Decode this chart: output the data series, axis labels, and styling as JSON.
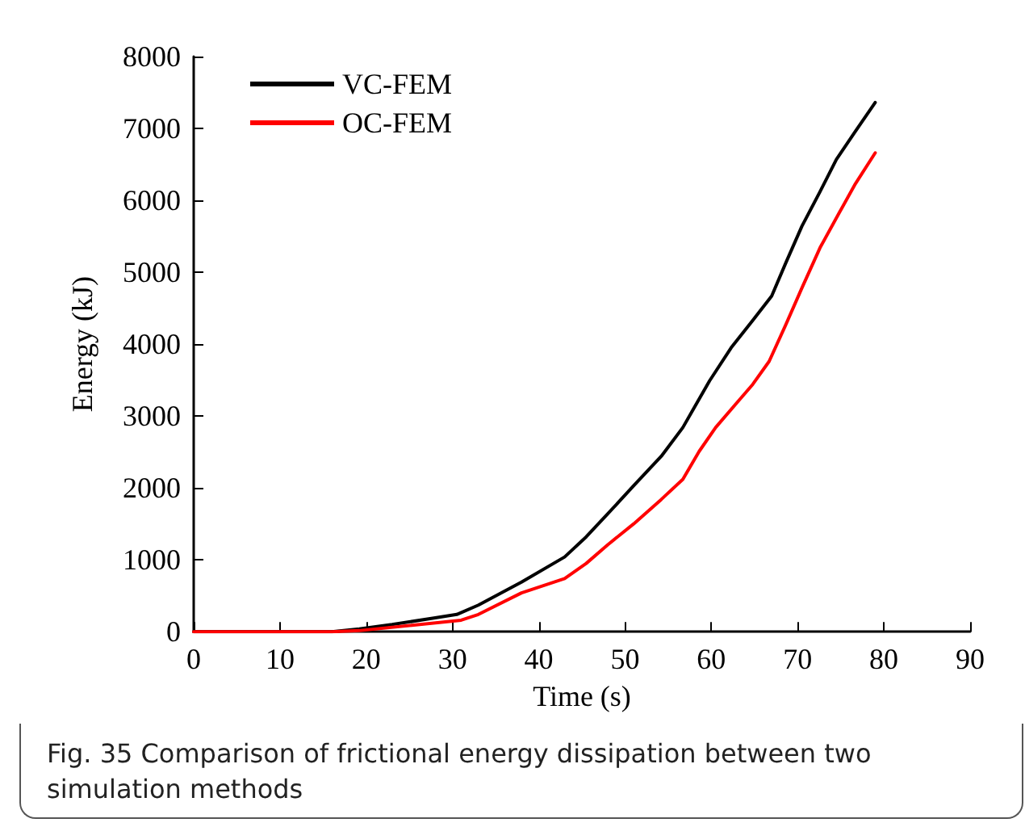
{
  "chart_data": {
    "type": "line",
    "title": "Fig. 35  Comparison of frictional energy dissipation between two simulation methods",
    "xlabel": "Time (s)",
    "ylabel": "Energy (kJ)",
    "xlim": [
      0,
      90
    ],
    "xticks": [
      0,
      10,
      20,
      30,
      40,
      50,
      60,
      70,
      80,
      90
    ],
    "ylim": [
      0,
      8000
    ],
    "yticks": [
      0,
      1000,
      2000,
      3000,
      4000,
      5000,
      6000,
      7000,
      8000
    ],
    "grid": false,
    "legend": "top left",
    "marker": "none",
    "line_style": "solid",
    "series": [
      {
        "name": "VC-FEM",
        "color": "#000000",
        "x": [
          0,
          16,
          19.2,
          23,
          30.5,
          33,
          38,
          43,
          45.5,
          48,
          51,
          54.2,
          56.7,
          59.8,
          62.3,
          64.8,
          67,
          68.6,
          70.5,
          72.6,
          74.5,
          76.7,
          79
        ],
        "values": [
          0,
          0,
          40,
          100,
          240,
          370,
          690,
          1040,
          1320,
          1640,
          2030,
          2440,
          2840,
          3490,
          3950,
          4330,
          4670,
          5120,
          5640,
          6120,
          6570,
          6960,
          7360
        ]
      },
      {
        "name": "OC-FEM",
        "color": "#ff0000",
        "x": [
          0,
          16,
          19.2,
          31,
          33,
          38,
          43,
          45.5,
          48,
          51,
          54.2,
          56.7,
          58.6,
          60.5,
          63,
          64.8,
          66.7,
          68.6,
          70.5,
          72.6,
          74.8,
          76.7,
          79
        ],
        "values": [
          0,
          0,
          15,
          160,
          240,
          540,
          740,
          950,
          1210,
          1500,
          1840,
          2120,
          2510,
          2840,
          3190,
          3440,
          3760,
          4260,
          4780,
          5340,
          5820,
          6230,
          6660
        ]
      }
    ]
  }
}
